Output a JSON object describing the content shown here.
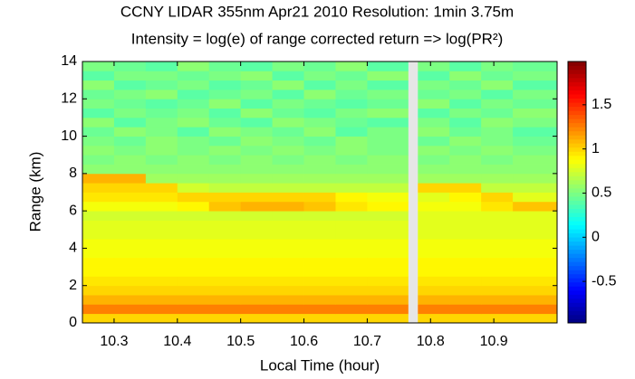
{
  "chart_data": {
    "type": "heatmap",
    "title": "CCNY LIDAR 355nm Apr21 2010 Resolution: 1min 3.75m",
    "subtitle": "Intensity = log(e) of range corrected return => log(PR²)",
    "xlabel": "Local Time (hour)",
    "ylabel": "Range (km)",
    "xbins": [
      10.25,
      10.3,
      10.35,
      10.4,
      10.45,
      10.5,
      10.55,
      10.6,
      10.65,
      10.7,
      10.765,
      10.78,
      10.83,
      10.88,
      10.93,
      11.0
    ],
    "ybins": [
      0,
      0.5,
      1,
      1.5,
      2,
      2.5,
      3,
      3.5,
      4,
      4.5,
      5,
      5.5,
      6,
      6.5,
      7,
      7.5,
      8,
      8.5,
      9,
      9.5,
      10,
      10.5,
      11,
      11.5,
      12,
      12.5,
      13,
      13.5,
      14
    ],
    "z": [
      [
        1.0,
        1.0,
        1.0,
        1.0,
        1.0,
        1.0,
        1.0,
        1.0,
        1.0,
        1.0,
        null,
        1.0,
        1.0,
        1.0,
        1.0
      ],
      [
        1.25,
        1.25,
        1.25,
        1.25,
        1.25,
        1.25,
        1.25,
        1.25,
        1.25,
        1.25,
        null,
        1.25,
        1.25,
        1.25,
        1.25
      ],
      [
        1.1,
        1.1,
        1.1,
        1.1,
        1.1,
        1.1,
        1.1,
        1.1,
        1.1,
        1.1,
        null,
        1.1,
        1.1,
        1.1,
        1.1
      ],
      [
        1.0,
        1.0,
        1.0,
        1.0,
        1.0,
        1.0,
        1.0,
        1.0,
        1.0,
        1.0,
        null,
        1.0,
        1.0,
        1.0,
        1.0
      ],
      [
        0.95,
        0.95,
        0.95,
        0.95,
        0.95,
        0.95,
        0.95,
        0.95,
        0.95,
        0.95,
        null,
        0.95,
        0.95,
        0.95,
        0.95
      ],
      [
        0.9,
        0.9,
        0.9,
        0.9,
        0.9,
        0.9,
        0.9,
        0.9,
        0.9,
        0.9,
        null,
        0.9,
        0.9,
        0.9,
        0.9
      ],
      [
        0.9,
        0.9,
        0.9,
        0.9,
        0.9,
        0.9,
        0.9,
        0.9,
        0.9,
        0.9,
        null,
        0.9,
        0.9,
        0.9,
        0.9
      ],
      [
        0.85,
        0.85,
        0.85,
        0.85,
        0.85,
        0.85,
        0.85,
        0.85,
        0.85,
        0.85,
        null,
        0.85,
        0.85,
        0.85,
        0.85
      ],
      [
        0.85,
        0.85,
        0.85,
        0.85,
        0.85,
        0.85,
        0.85,
        0.85,
        0.85,
        0.85,
        null,
        0.85,
        0.85,
        0.85,
        0.85
      ],
      [
        0.8,
        0.8,
        0.8,
        0.8,
        0.8,
        0.8,
        0.8,
        0.8,
        0.8,
        0.8,
        null,
        0.8,
        0.8,
        0.8,
        0.8
      ],
      [
        0.8,
        0.8,
        0.8,
        0.8,
        0.8,
        0.8,
        0.8,
        0.8,
        0.8,
        0.8,
        null,
        0.8,
        0.8,
        0.8,
        0.8
      ],
      [
        0.75,
        0.75,
        0.75,
        0.75,
        0.75,
        0.75,
        0.75,
        0.75,
        0.75,
        0.75,
        null,
        0.8,
        0.8,
        0.8,
        0.8
      ],
      [
        0.85,
        0.85,
        0.85,
        0.9,
        1.05,
        1.1,
        1.1,
        1.05,
        0.95,
        0.9,
        null,
        0.85,
        0.85,
        0.95,
        1.05
      ],
      [
        0.95,
        0.95,
        0.95,
        1.0,
        1.0,
        1.0,
        1.0,
        1.0,
        0.9,
        0.85,
        null,
        0.8,
        0.9,
        1.0,
        0.8
      ],
      [
        1.0,
        1.0,
        1.0,
        0.75,
        0.7,
        0.7,
        0.7,
        0.7,
        0.7,
        0.7,
        null,
        1.0,
        1.0,
        0.7,
        0.7
      ],
      [
        1.1,
        1.1,
        0.6,
        0.6,
        0.6,
        0.6,
        0.6,
        0.6,
        0.6,
        0.6,
        null,
        0.6,
        0.6,
        0.6,
        0.6
      ],
      [
        0.55,
        0.55,
        0.55,
        0.55,
        0.55,
        0.55,
        0.55,
        0.55,
        0.55,
        0.55,
        null,
        0.55,
        0.55,
        0.55,
        0.55
      ],
      [
        0.5,
        0.55,
        0.5,
        0.55,
        0.5,
        0.55,
        0.5,
        0.55,
        0.5,
        0.55,
        null,
        0.5,
        0.55,
        0.5,
        0.55
      ],
      [
        0.55,
        0.5,
        0.55,
        0.5,
        0.55,
        0.5,
        0.55,
        0.5,
        0.55,
        0.5,
        null,
        0.55,
        0.5,
        0.55,
        0.5
      ],
      [
        0.5,
        0.45,
        0.55,
        0.5,
        0.45,
        0.55,
        0.5,
        0.45,
        0.55,
        0.5,
        null,
        0.45,
        0.55,
        0.5,
        0.45
      ],
      [
        0.45,
        0.55,
        0.5,
        0.4,
        0.55,
        0.5,
        0.45,
        0.55,
        0.4,
        0.5,
        null,
        0.55,
        0.45,
        0.5,
        0.4
      ],
      [
        0.55,
        0.4,
        0.5,
        0.55,
        0.45,
        0.4,
        0.55,
        0.5,
        0.45,
        0.4,
        null,
        0.5,
        0.4,
        0.55,
        0.5
      ],
      [
        0.4,
        0.5,
        0.45,
        0.5,
        0.4,
        0.55,
        0.45,
        0.4,
        0.5,
        0.55,
        null,
        0.4,
        0.5,
        0.45,
        0.55
      ],
      [
        0.5,
        0.45,
        0.4,
        0.45,
        0.55,
        0.4,
        0.5,
        0.45,
        0.4,
        0.45,
        null,
        0.55,
        0.4,
        0.5,
        0.45
      ],
      [
        0.45,
        0.5,
        0.55,
        0.4,
        0.45,
        0.5,
        0.4,
        0.55,
        0.45,
        0.5,
        null,
        0.45,
        0.5,
        0.4,
        0.5
      ],
      [
        0.55,
        0.4,
        0.45,
        0.5,
        0.4,
        0.45,
        0.55,
        0.4,
        0.5,
        0.4,
        null,
        0.5,
        0.45,
        0.55,
        0.4
      ],
      [
        0.4,
        0.5,
        0.5,
        0.45,
        0.5,
        0.55,
        0.4,
        0.5,
        0.45,
        0.55,
        null,
        0.4,
        0.55,
        0.45,
        0.5
      ],
      [
        0.5,
        0.45,
        0.4,
        0.55,
        0.45,
        0.4,
        0.5,
        0.45,
        0.55,
        0.4,
        null,
        0.5,
        0.4,
        0.5,
        0.45
      ]
    ],
    "xlim": [
      10.25,
      11.0
    ],
    "ylim": [
      0,
      14
    ],
    "xticks": [
      10.3,
      10.4,
      10.5,
      10.6,
      10.7,
      10.8,
      10.9
    ],
    "yticks": [
      0,
      2,
      4,
      6,
      8,
      10,
      12,
      14
    ],
    "clim": [
      -0.97,
      1.99
    ],
    "cticks": [
      -0.5,
      0,
      0.5,
      1,
      1.5
    ],
    "colormap": "jet",
    "missing_color": "#e6e6e6"
  }
}
